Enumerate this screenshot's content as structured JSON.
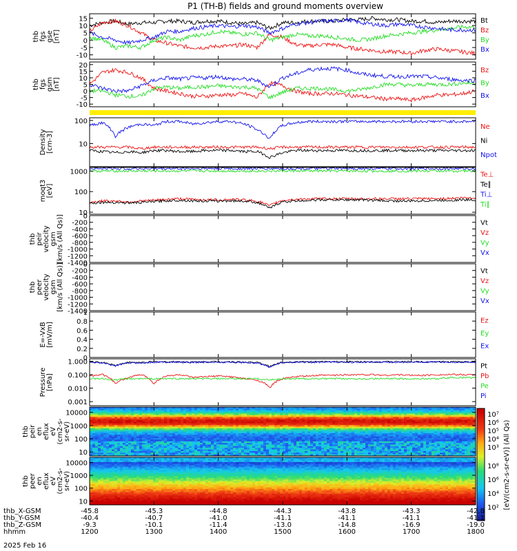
{
  "title": "P1 (TH-B) fields and ground moments overview",
  "colors": {
    "black": "#000000",
    "red": "#ee1111",
    "green": "#22dd22",
    "blue": "#1111ee",
    "yellow": "#ffee00"
  },
  "chart_data": [
    {
      "type": "line",
      "ylabel": [
        "thb",
        "fgs",
        "gse",
        "[nT]"
      ],
      "ylim": [
        -13,
        18
      ],
      "log": false,
      "ticks": [
        15,
        10,
        5,
        0,
        -5,
        -10
      ],
      "series": [
        {
          "name": "Bt",
          "color": "black",
          "values": [
            10,
            12,
            13,
            11,
            12,
            12,
            13,
            13,
            12,
            13,
            13,
            12,
            11,
            12,
            8,
            12,
            12,
            13,
            13,
            13,
            14,
            14,
            15,
            14,
            14,
            13,
            13,
            12,
            13,
            13,
            13
          ]
        },
        {
          "name": "Bz",
          "color": "red",
          "values": [
            6,
            12,
            13,
            10,
            5,
            0,
            -2,
            -4,
            -5,
            -5,
            -4,
            -4,
            -3,
            -5,
            4,
            2,
            -3,
            -4,
            -3,
            -3,
            -5,
            -6,
            -7,
            -8,
            -8,
            -9,
            -7,
            -6,
            -7,
            -8,
            -9
          ]
        },
        {
          "name": "By",
          "color": "green",
          "values": [
            2,
            0,
            -5,
            -4,
            -5,
            0,
            2,
            0,
            3,
            4,
            6,
            5,
            4,
            5,
            0,
            2,
            4,
            3,
            3,
            2,
            1,
            0,
            1,
            3,
            4,
            5,
            6,
            7,
            8,
            9,
            9
          ]
        },
        {
          "name": "Bx",
          "color": "blue",
          "values": [
            5,
            2,
            0,
            -2,
            0,
            2,
            6,
            6,
            8,
            9,
            10,
            9,
            10,
            9,
            5,
            8,
            11,
            12,
            13,
            13,
            14,
            12,
            11,
            10,
            11,
            10,
            9,
            8,
            7,
            7,
            7
          ]
        }
      ]
    },
    {
      "type": "line",
      "ylabel": [
        "thb",
        "fgs",
        "gsm",
        "[nT]"
      ],
      "ylim": [
        -12,
        22
      ],
      "log": false,
      "ticks": [
        20,
        15,
        10,
        5,
        0,
        -5,
        -10
      ],
      "series": [
        {
          "name": "Bz",
          "color": "red",
          "values": [
            5,
            14,
            16,
            14,
            10,
            2,
            0,
            -2,
            -4,
            -4,
            -3,
            -3,
            -2,
            -5,
            6,
            4,
            0,
            -2,
            -2,
            -2,
            -3,
            -4,
            -5,
            -6,
            -6,
            -7,
            -5,
            -3,
            -3,
            -2,
            0
          ]
        },
        {
          "name": "By",
          "color": "green",
          "values": [
            0,
            0,
            -3,
            -4,
            -4,
            2,
            3,
            2,
            3,
            3,
            4,
            3,
            3,
            2,
            -5,
            -1,
            2,
            2,
            2,
            1,
            0,
            1,
            3,
            5,
            5,
            4,
            5,
            5,
            5,
            6,
            6
          ]
        },
        {
          "name": "Bx",
          "color": "blue",
          "values": [
            5,
            2,
            0,
            0,
            4,
            8,
            10,
            9,
            10,
            10,
            11,
            9,
            9,
            8,
            3,
            10,
            13,
            16,
            17,
            17,
            16,
            13,
            12,
            11,
            11,
            11,
            11,
            10,
            9,
            8,
            8
          ]
        }
      ]
    },
    {
      "type": "line",
      "ylabel": [
        "Density",
        "[cm-3]"
      ],
      "ylim": [
        1,
        130
      ],
      "log": true,
      "ticks": [
        100,
        10
      ],
      "series": [
        {
          "name": "Ne",
          "color": "red",
          "values": [
            7,
            7,
            7,
            7,
            6,
            7,
            7,
            7,
            7,
            7,
            7,
            7,
            7,
            7,
            6,
            7,
            7,
            7,
            7,
            7,
            7,
            7,
            7,
            7,
            7,
            7,
            7,
            7,
            7,
            7,
            7
          ]
        },
        {
          "name": "Ni",
          "color": "black",
          "values": [
            5,
            4.5,
            4,
            4.5,
            4,
            5,
            5,
            4.5,
            4.5,
            5,
            5,
            5,
            4.5,
            4.5,
            2.5,
            4,
            5,
            5,
            5,
            5,
            5,
            5,
            5,
            5,
            5,
            5,
            5,
            5,
            5,
            5,
            5
          ]
        },
        {
          "name": "Npot",
          "color": "blue",
          "values": [
            60,
            80,
            20,
            50,
            70,
            60,
            90,
            90,
            70,
            80,
            90,
            90,
            70,
            40,
            15,
            60,
            80,
            90,
            90,
            90,
            90,
            90,
            90,
            90,
            90,
            90,
            90,
            90,
            90,
            90,
            90
          ]
        }
      ]
    },
    {
      "type": "line",
      "ylabel": [
        "moqt3",
        "[eV]"
      ],
      "ylim": [
        8,
        1500
      ],
      "log": true,
      "ticks": [
        1000,
        100,
        10
      ],
      "series": [
        {
          "name": "Te⊥",
          "color": "red",
          "values": [
            30,
            35,
            35,
            32,
            35,
            38,
            42,
            45,
            42,
            40,
            40,
            42,
            40,
            35,
            20,
            38,
            42,
            44,
            45,
            45,
            45,
            45,
            45,
            45,
            45,
            45,
            45,
            45,
            47,
            50,
            50
          ]
        },
        {
          "name": "Te∥",
          "color": "black",
          "values": [
            28,
            30,
            30,
            28,
            30,
            33,
            36,
            38,
            36,
            35,
            35,
            36,
            35,
            30,
            15,
            32,
            35,
            38,
            40,
            40,
            40,
            40,
            38,
            36,
            35,
            35,
            36,
            37,
            38,
            40,
            40
          ]
        },
        {
          "name": "Ti⊥",
          "color": "blue",
          "values": [
            1300,
            1300,
            1300,
            1300,
            1300,
            1300,
            1300,
            1300,
            1300,
            1300,
            1300,
            1300,
            1300,
            1300,
            1300,
            1300,
            1300,
            1300,
            1300,
            1300,
            1300,
            1300,
            1300,
            1300,
            1300,
            1300,
            1300,
            1300,
            1300,
            1300,
            1300
          ]
        },
        {
          "name": "Ti∥",
          "color": "green",
          "values": [
            1000,
            1000,
            1000,
            1000,
            1000,
            1000,
            1000,
            1000,
            1000,
            1000,
            1000,
            1000,
            1000,
            1000,
            1000,
            1000,
            1000,
            1000,
            1000,
            1000,
            1000,
            1000,
            1000,
            1000,
            1000,
            1000,
            1000,
            1000,
            1000,
            1000,
            1000
          ]
        }
      ]
    },
    {
      "type": "line",
      "ylabel": [
        "thb",
        "peir",
        "velocity",
        "gsm",
        "[km/s (All Qs)]"
      ],
      "ylim": [
        -1400,
        0
      ],
      "log": false,
      "ticks": [
        0,
        -200,
        -400,
        -600,
        -800,
        -1000,
        -1200,
        -1400
      ],
      "series": [
        {
          "name": "Vt",
          "color": "black",
          "values": []
        },
        {
          "name": "Vz",
          "color": "red",
          "values": []
        },
        {
          "name": "Vy",
          "color": "green",
          "values": []
        },
        {
          "name": "Vx",
          "color": "blue",
          "values": []
        }
      ]
    },
    {
      "type": "line",
      "ylabel": [
        "thb",
        "peer",
        "velocity",
        "gsm",
        "[km/s (All Qs)]"
      ],
      "ylim": [
        -1400,
        0
      ],
      "log": false,
      "ticks": [
        0,
        -200,
        -400,
        -600,
        -800,
        -1000,
        -1200,
        -1400
      ],
      "series": [
        {
          "name": "Vt",
          "color": "black",
          "values": []
        },
        {
          "name": "Vz",
          "color": "red",
          "values": []
        },
        {
          "name": "Vy",
          "color": "green",
          "values": []
        },
        {
          "name": "Vx",
          "color": "blue",
          "values": []
        }
      ]
    },
    {
      "type": "line",
      "ylabel": [
        "E=-VxB",
        "[mV/m]"
      ],
      "ylim": [
        0,
        1
      ],
      "log": false,
      "ticks": [
        1.0,
        0.8,
        0.6,
        0.4,
        0.2,
        0.0
      ],
      "series": [
        {
          "name": "Ez",
          "color": "red",
          "values": []
        },
        {
          "name": "Ey",
          "color": "green",
          "values": []
        },
        {
          "name": "Ex",
          "color": "blue",
          "values": []
        }
      ]
    },
    {
      "type": "line",
      "ylabel": [
        "Pressure",
        "[nPa]"
      ],
      "ylim": [
        0.0005,
        1.5
      ],
      "log": true,
      "ticks": [
        1.0,
        0.1,
        0.01,
        0.001
      ],
      "tick_labels": [
        "1.000",
        "0.100",
        "0.010",
        "0.001"
      ],
      "series": [
        {
          "name": "Pt",
          "color": "black",
          "values": [
            0.9,
            0.8,
            0.5,
            0.8,
            0.8,
            0.9,
            0.9,
            0.9,
            0.85,
            0.9,
            0.9,
            0.9,
            0.85,
            0.8,
            0.4,
            0.85,
            0.9,
            0.9,
            0.9,
            0.9,
            0.9,
            0.9,
            0.9,
            0.9,
            0.9,
            0.9,
            0.9,
            0.9,
            0.9,
            0.9,
            0.9
          ]
        },
        {
          "name": "Pb",
          "color": "red",
          "values": [
            0.08,
            0.1,
            0.02,
            0.06,
            0.1,
            0.02,
            0.08,
            0.1,
            0.06,
            0.07,
            0.08,
            0.07,
            0.05,
            0.04,
            0.01,
            0.05,
            0.07,
            0.08,
            0.09,
            0.09,
            0.1,
            0.1,
            0.1,
            0.09,
            0.1,
            0.09,
            0.09,
            0.1,
            0.1,
            0.1,
            0.1
          ]
        },
        {
          "name": "Pe",
          "color": "green",
          "values": [
            0.05,
            0.05,
            0.04,
            0.05,
            0.05,
            0.05,
            0.05,
            0.05,
            0.05,
            0.05,
            0.05,
            0.05,
            0.05,
            0.05,
            0.04,
            0.05,
            0.05,
            0.05,
            0.05,
            0.05,
            0.05,
            0.05,
            0.05,
            0.05,
            0.05,
            0.05,
            0.05,
            0.05,
            0.06,
            0.06,
            0.06
          ]
        },
        {
          "name": "Pi",
          "color": "blue",
          "values": [
            0.8,
            0.75,
            0.45,
            0.75,
            0.75,
            0.85,
            0.85,
            0.85,
            0.8,
            0.85,
            0.85,
            0.85,
            0.8,
            0.75,
            0.35,
            0.8,
            0.85,
            0.85,
            0.85,
            0.85,
            0.85,
            0.85,
            0.85,
            0.85,
            0.85,
            0.85,
            0.85,
            0.85,
            0.85,
            0.85,
            0.85
          ]
        }
      ]
    },
    {
      "type": "heatmap",
      "ylabel": [
        "thb",
        "peir",
        "en",
        "eflux",
        "eV",
        "(cm2-s-",
        "sr-eV)"
      ],
      "ylim": [
        5,
        25000
      ],
      "log": true,
      "ticks": [
        10000,
        1000,
        100,
        10
      ],
      "band_peak_log10_energy": 3.3
    },
    {
      "type": "heatmap",
      "ylabel": [
        "thb",
        "peer",
        "en",
        "eflux",
        "eV",
        "(cm2-s-",
        "sr-eV)"
      ],
      "ylim": [
        5,
        25000
      ],
      "log": true,
      "ticks": [
        10000,
        1000,
        100,
        10
      ],
      "band_peak_log10_energy": 1.0
    }
  ],
  "colorbar": {
    "label": "[eV/(cm2-s-sr-eV)] (All Qs)",
    "ticks_upper": [
      "10⁷",
      "10⁶",
      "10⁵",
      "10⁴",
      "10³"
    ],
    "ticks_lower": [
      "10⁸",
      "10⁶",
      "10⁴",
      "10²"
    ]
  },
  "x_axis": {
    "ticks": [
      "1200",
      "1300",
      "1400",
      "1500",
      "1600",
      "1700",
      "1800"
    ],
    "rows": [
      {
        "label": "thb_X-GSM",
        "values": [
          "-45.8",
          "-45.3",
          "-44.8",
          "-44.3",
          "-43.8",
          "-43.3",
          "-42.8"
        ]
      },
      {
        "label": "thb_Y-GSM",
        "values": [
          "-40.4",
          "-40.7",
          "-41.0",
          "-41.1",
          "-41.1",
          "-41.1",
          "-41.1"
        ]
      },
      {
        "label": "thb_Z-GSM",
        "values": [
          "-9.3",
          "-10.1",
          "-11.4",
          "-13.0",
          "-14.8",
          "-16.9",
          "-19.0"
        ]
      },
      {
        "label": "hhmm",
        "values": [
          "1200",
          "1300",
          "1400",
          "1500",
          "1600",
          "1700",
          "1800"
        ]
      }
    ],
    "date": "2025 Feb 16"
  }
}
